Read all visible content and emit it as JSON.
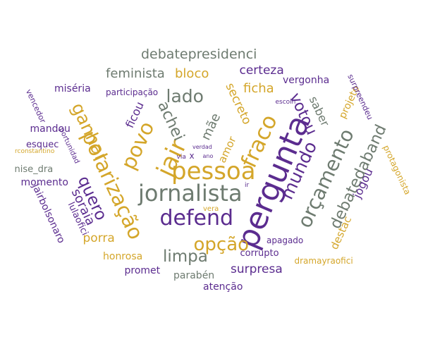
{
  "palette": {
    "purple": "#5b2c8f",
    "gold": "#d4a62a",
    "gray": "#6e7b70"
  },
  "words": [
    {
      "text": "pergunta",
      "color": "purple"
    },
    {
      "text": "pessoa",
      "color": "gold"
    },
    {
      "text": "jornalista",
      "color": "gray"
    },
    {
      "text": "defend",
      "color": "purple"
    },
    {
      "text": "jair",
      "color": "gold"
    },
    {
      "text": "fraco",
      "color": "gold"
    },
    {
      "text": "povo",
      "color": "gold"
    },
    {
      "text": "polarização",
      "color": "gold"
    },
    {
      "text": "ganhar",
      "color": "gold"
    },
    {
      "text": "mundo",
      "color": "purple"
    },
    {
      "text": "orçamento",
      "color": "gray"
    },
    {
      "text": "votou",
      "color": "purple"
    },
    {
      "text": "opção",
      "color": "gold"
    },
    {
      "text": "lado",
      "color": "gray"
    },
    {
      "text": "quero",
      "color": "purple"
    },
    {
      "text": "debatedaband",
      "color": "gray"
    },
    {
      "text": "limpa",
      "color": "gray"
    },
    {
      "text": "achei",
      "color": "gray"
    },
    {
      "text": "mãe",
      "color": "gray"
    },
    {
      "text": "debatepresidenci",
      "color": "gray"
    },
    {
      "text": "bloco",
      "color": "gold"
    },
    {
      "text": "feminista",
      "color": "gray"
    },
    {
      "text": "certeza",
      "color": "purple"
    },
    {
      "text": "ficha",
      "color": "gold"
    },
    {
      "text": "secreto",
      "color": "gold"
    },
    {
      "text": "vergonha",
      "color": "purple"
    },
    {
      "text": "saber",
      "color": "gray"
    },
    {
      "text": "ficou",
      "color": "purple"
    },
    {
      "text": "soraia",
      "color": "purple"
    },
    {
      "text": "jogou",
      "color": "purple"
    },
    {
      "text": "destac",
      "color": "gold"
    },
    {
      "text": "porra",
      "color": "gold"
    },
    {
      "text": "surpresa",
      "color": "purple"
    },
    {
      "text": "amor",
      "color": "gold"
    },
    {
      "text": "projeto",
      "color": "gold"
    },
    {
      "text": "miséria",
      "color": "purple"
    },
    {
      "text": "mandou",
      "color": "purple"
    },
    {
      "text": "esquec",
      "color": "purple"
    },
    {
      "text": "nise_dra",
      "color": "gray"
    },
    {
      "text": "momento",
      "color": "purple"
    },
    {
      "text": "jairbolsonaro",
      "color": "purple"
    },
    {
      "text": "lulaofici",
      "color": "purple"
    },
    {
      "text": "honrosa",
      "color": "gold"
    },
    {
      "text": "promet",
      "color": "purple"
    },
    {
      "text": "parabén",
      "color": "gray"
    },
    {
      "text": "atenção",
      "color": "purple"
    },
    {
      "text": "corrupto",
      "color": "purple"
    },
    {
      "text": "apagado",
      "color": "purple"
    },
    {
      "text": "dramayraofici",
      "color": "gold"
    },
    {
      "text": "participação",
      "color": "purple"
    },
    {
      "text": "vencedor",
      "color": "purple"
    },
    {
      "text": "portunidad",
      "color": "purple"
    },
    {
      "text": "rconstantino",
      "color": "gold"
    },
    {
      "text": "surpreendeu",
      "color": "purple"
    },
    {
      "text": "protagonista",
      "color": "gold"
    },
    {
      "text": "escolh",
      "color": "purple"
    },
    {
      "text": "verdad",
      "color": "purple"
    },
    {
      "text": "ano",
      "color": "purple"
    },
    {
      "text": "via",
      "color": "purple"
    },
    {
      "text": "x",
      "color": "purple"
    },
    {
      "text": "vera",
      "color": "gold"
    },
    {
      "text": "ir",
      "color": "purple"
    }
  ]
}
